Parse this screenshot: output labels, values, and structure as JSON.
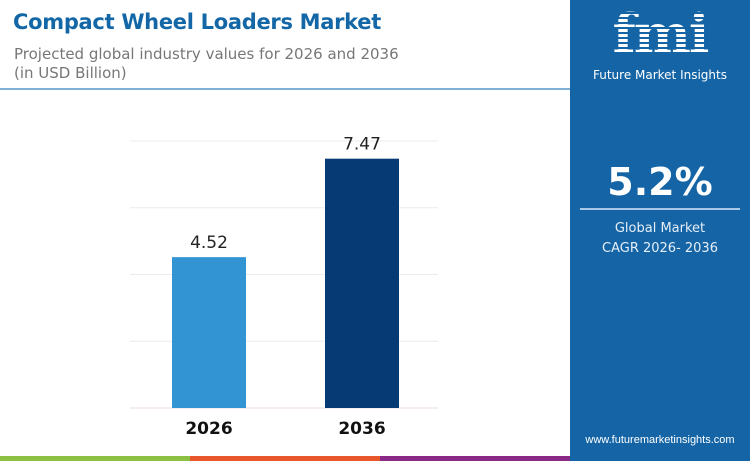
{
  "header": {
    "title": "Compact Wheel Loaders Market",
    "subtitle": "Projected global industry values for 2026 and 2036",
    "unit": "(in USD Billion)"
  },
  "panel": {
    "logo_text": "fmi",
    "brand": "Future Market Insights",
    "cagr_value": "5.2%",
    "cagr_label_1": "Global Market",
    "cagr_label_2": "CAGR 2026- 2036",
    "website": "www.futuremarketinsights.com"
  },
  "colors": {
    "bar_2026": "#3394d4",
    "bar_2036": "#063a75",
    "panel": "#1565a6",
    "title": "#1467a6",
    "stripes": [
      "#8bc043",
      "#e8582a",
      "#8b2a86"
    ]
  },
  "chart_data": {
    "type": "bar",
    "categories": [
      "2026",
      "2036"
    ],
    "values": [
      4.52,
      7.47
    ],
    "labels": [
      "4.52",
      "7.47"
    ],
    "ylim": [
      0,
      8
    ],
    "yticks": [
      0,
      2,
      4,
      6,
      8
    ],
    "grid": true,
    "show_y_tick_labels": false,
    "title": "",
    "xlabel": "",
    "ylabel": ""
  }
}
